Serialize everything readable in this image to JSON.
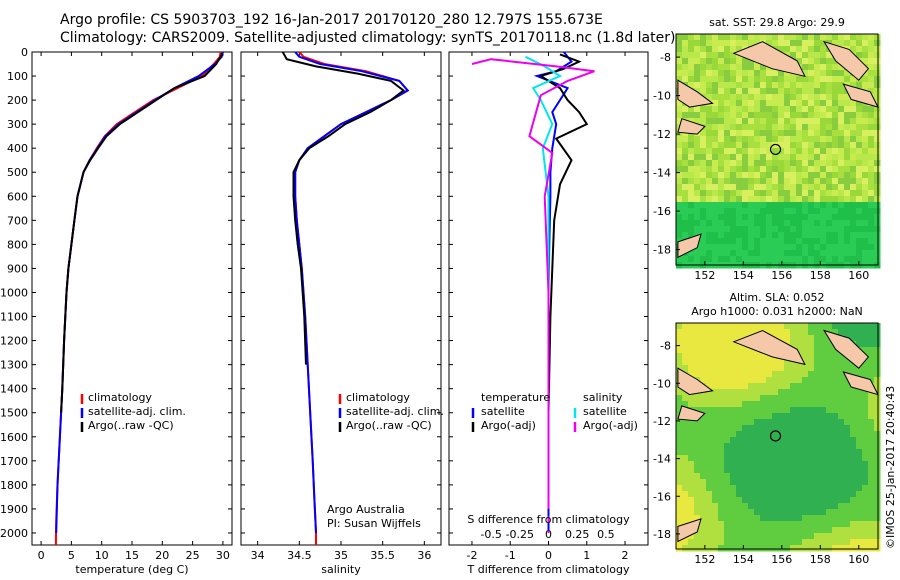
{
  "header": {
    "line1": "Argo profile: CS 5903703_192 16-Jan-2017 20170120_280 12.797S 155.673E",
    "line2": "Climatology: CARS2009. Satellite-adjusted climatology: synTS_20170118.nc (1.8d later)"
  },
  "colors": {
    "climatology": "#ff0000",
    "satellite": "#0000ff",
    "argo": "#000000",
    "sal_satellite": "#00e5ee",
    "sal_argo": "#ee00ee"
  },
  "depth_axis": {
    "ylim": [
      0,
      2050
    ],
    "ticks": [
      "0",
      "100",
      "200",
      "300",
      "400",
      "500",
      "600",
      "700",
      "800",
      "900",
      "1000",
      "1100",
      "1200",
      "1300",
      "1400",
      "1500",
      "1600",
      "1700",
      "1800",
      "1900",
      "2000"
    ]
  },
  "panels": {
    "temperature": {
      "xlabel": "temperature (deg C)",
      "xlim": [
        -1.5,
        31.5
      ],
      "xticks": [
        "0",
        "5",
        "10",
        "15",
        "20",
        "25",
        "30"
      ],
      "legend": [
        "climatology",
        "satellite-adj. clim.",
        "Argo(..raw -QC)"
      ]
    },
    "salinity": {
      "xlabel": "salinity",
      "xlim": [
        33.8,
        36.2
      ],
      "xticks": [
        "34",
        "34.5",
        "35",
        "35.5",
        "36"
      ],
      "legend": [
        "climatology",
        "satellite-adj. clim.",
        "Argo(..raw -QC)"
      ],
      "note1": "Argo Australia",
      "note2": "PI: Susan Wijffels"
    },
    "difference": {
      "xlabel": "T difference from climatology",
      "xlabel_top": "S difference from climatology",
      "xticks_T": [
        "-2",
        "-1",
        "0",
        "1",
        "2"
      ],
      "xticks_S": [
        "-0.5",
        "-0.25",
        "0",
        "0.25",
        "0.5"
      ],
      "legend_t_title": "temperature",
      "legend_s_title": "salinity",
      "legend_t": [
        "satellite",
        "Argo(-adj)"
      ],
      "legend_s": [
        "satellite",
        "Argo(-adj)"
      ]
    }
  },
  "maps": {
    "sst": {
      "title": "sat. SST: 29.8 Argo: 29.9",
      "yticks": [
        "-8",
        "-10",
        "-12",
        "-14",
        "-16",
        "-18"
      ],
      "xticks": [
        "152",
        "154",
        "156",
        "158",
        "160"
      ]
    },
    "sla": {
      "title1": "Altim. SLA: 0.052",
      "title2": "Argo h1000: 0.031 h2000: NaN",
      "yticks": [
        "-8",
        "-10",
        "-12",
        "-14",
        "-16",
        "-18"
      ],
      "xticks": [
        "152",
        "154",
        "156",
        "158",
        "160"
      ]
    },
    "argo_position": {
      "lon": 155.673,
      "lat": -12.797
    },
    "lon_range": [
      150.5,
      161
    ],
    "lat_range": [
      -18.8,
      -6.8
    ]
  },
  "credit": "©IMOS 25-Jan-2017 20:40:43",
  "chart_data": [
    {
      "type": "line",
      "title": "",
      "xlabel": "temperature (deg C)",
      "ylabel": "",
      "xlim": [
        -1.5,
        31.5
      ],
      "ylim": [
        2050,
        0
      ],
      "series": [
        {
          "name": "climatology",
          "color": "#ff0000",
          "x": [
            29.6,
            29.5,
            28.5,
            26.5,
            22.5,
            18.5,
            15.5,
            12.5,
            10.5,
            9.2,
            8.0,
            7.0,
            6.0,
            5.5,
            5.0,
            4.5,
            4.2,
            3.8,
            3.5,
            3.3,
            3.1,
            2.9,
            2.7,
            2.5,
            2.45
          ],
          "y": [
            0,
            20,
            50,
            100,
            150,
            200,
            250,
            300,
            350,
            400,
            450,
            500,
            600,
            700,
            800,
            900,
            1000,
            1200,
            1400,
            1500,
            1600,
            1700,
            1800,
            1950,
            2050
          ]
        },
        {
          "name": "satellite-adj. clim.",
          "color": "#0000ff",
          "x": [
            30.0,
            29.8,
            28.7,
            26.0,
            22.0,
            18.8,
            15.8,
            12.8,
            10.6,
            9.3,
            8.0,
            7.0,
            6.0,
            5.5,
            5.0,
            4.5,
            4.2,
            3.8,
            3.5,
            3.3,
            3.1,
            2.9,
            2.7,
            2.5
          ],
          "y": [
            0,
            20,
            50,
            100,
            150,
            200,
            250,
            300,
            350,
            400,
            450,
            500,
            600,
            700,
            800,
            900,
            1000,
            1200,
            1400,
            1500,
            1600,
            1700,
            1800,
            2000
          ]
        },
        {
          "name": "Argo(..raw -QC)",
          "color": "#000000",
          "x": [
            29.9,
            29.6,
            28.9,
            27.0,
            22.0,
            19.0,
            16.0,
            13.0,
            10.8,
            9.4,
            8.1,
            7.0,
            6.0,
            5.5,
            5.0,
            4.5,
            4.2,
            3.8,
            3.5,
            3.3
          ],
          "y": [
            5,
            20,
            50,
            100,
            150,
            200,
            250,
            300,
            350,
            400,
            450,
            500,
            600,
            700,
            800,
            900,
            1000,
            1200,
            1400,
            1500
          ]
        }
      ]
    },
    {
      "type": "line",
      "title": "",
      "xlabel": "salinity",
      "ylabel": "",
      "xlim": [
        33.8,
        36.2
      ],
      "ylim": [
        2050,
        0
      ],
      "series": [
        {
          "name": "climatology",
          "color": "#ff0000",
          "x": [
            34.5,
            34.55,
            34.8,
            35.3,
            35.7,
            35.8,
            35.6,
            35.3,
            35.0,
            34.8,
            34.6,
            34.5,
            34.45,
            34.45,
            34.47,
            34.5,
            34.53,
            34.57,
            34.6,
            34.63,
            34.66,
            34.68,
            34.7,
            34.7
          ],
          "y": [
            0,
            20,
            50,
            80,
            120,
            160,
            200,
            250,
            300,
            350,
            400,
            450,
            500,
            600,
            700,
            800,
            900,
            1100,
            1300,
            1500,
            1700,
            1850,
            2000,
            2050
          ]
        },
        {
          "name": "satellite-adj. clim.",
          "color": "#0000ff",
          "x": [
            34.45,
            34.5,
            34.75,
            35.25,
            35.7,
            35.8,
            35.6,
            35.3,
            35.0,
            34.8,
            34.6,
            34.5,
            34.45,
            34.45,
            34.47,
            34.5,
            34.53,
            34.57,
            34.6,
            34.63,
            34.66,
            34.68,
            34.7
          ],
          "y": [
            0,
            20,
            50,
            80,
            120,
            160,
            200,
            250,
            300,
            350,
            400,
            450,
            500,
            600,
            700,
            800,
            900,
            1100,
            1300,
            1500,
            1700,
            1850,
            2000
          ]
        },
        {
          "name": "Argo(..raw -QC)",
          "color": "#000000",
          "x": [
            34.3,
            34.35,
            34.7,
            35.2,
            35.6,
            35.75,
            35.6,
            35.35,
            35.05,
            34.85,
            34.62,
            34.5,
            34.43,
            34.43,
            34.45,
            34.48,
            34.52,
            34.56,
            34.58
          ],
          "y": [
            0,
            30,
            60,
            90,
            120,
            160,
            200,
            250,
            300,
            350,
            400,
            450,
            500,
            600,
            700,
            800,
            900,
            1100,
            1300
          ]
        }
      ]
    },
    {
      "type": "line",
      "title": "",
      "xlabel": "T difference from climatology",
      "ylabel": "",
      "xlim": [
        -2.6,
        2.6
      ],
      "ylim": [
        2050,
        0
      ],
      "series": [
        {
          "name": "temperature satellite",
          "color": "#0000ff",
          "x": [
            0.4,
            0.6,
            0.2,
            -0.3,
            0.5,
            0.3,
            0.1,
            0.2,
            0.1,
            0.05,
            0.05,
            0.02,
            0.0,
            0.0,
            0.0
          ],
          "y": [
            0,
            40,
            80,
            100,
            150,
            200,
            250,
            300,
            400,
            500,
            600,
            800,
            1000,
            1500,
            2000
          ]
        },
        {
          "name": "temperature Argo(-adj)",
          "color": "#000000",
          "x": [
            0.3,
            0.8,
            0.4,
            -0.2,
            0.3,
            0.5,
            0.8,
            1.0,
            0.2,
            0.6,
            0.3,
            0.15,
            0.1,
            0.05,
            0.0
          ],
          "y": [
            10,
            40,
            70,
            100,
            150,
            200,
            250,
            300,
            360,
            450,
            550,
            700,
            900,
            1100,
            1500
          ]
        },
        {
          "name": "salinity satellite",
          "color": "#00e5ee",
          "x": [
            -0.6,
            -0.1,
            0.3,
            -0.4,
            -0.2,
            0.1,
            -0.15,
            0.0,
            0.0,
            0.0
          ],
          "y": [
            20,
            60,
            100,
            150,
            200,
            300,
            400,
            600,
            1000,
            1500
          ]
        },
        {
          "name": "salinity Argo(-adj)",
          "color": "#ee00ee",
          "x": [
            -2.0,
            -1.5,
            0.2,
            1.2,
            0.5,
            -0.2,
            -0.5,
            0.1,
            -0.1,
            0.0,
            0.0
          ],
          "y": [
            50,
            30,
            60,
            80,
            120,
            180,
            350,
            420,
            600,
            1000,
            1900
          ]
        }
      ]
    }
  ]
}
